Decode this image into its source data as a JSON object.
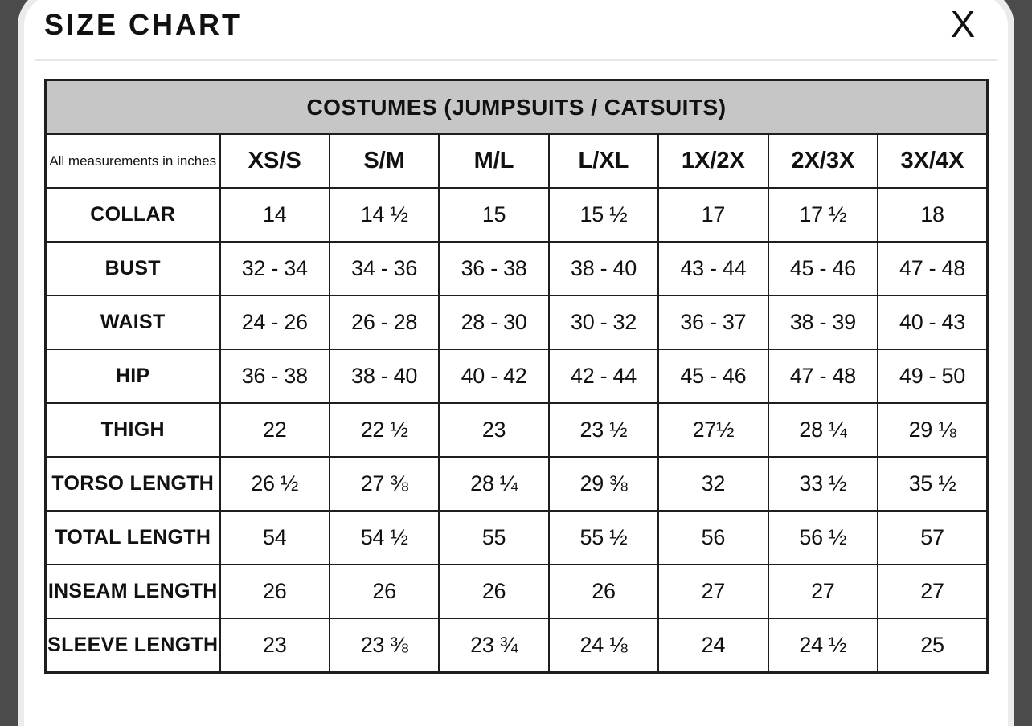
{
  "modal": {
    "title": "SIZE CHART",
    "close_label": "X"
  },
  "table": {
    "caption": "COSTUMES (JUMPSUITS / CATSUITS)",
    "corner_note": "All measurements in inches",
    "size_columns": [
      "XS/S",
      "S/M",
      "M/L",
      "L/XL",
      "1X/2X",
      "2X/3X",
      "3X/4X"
    ],
    "rows": [
      {
        "label": "COLLAR",
        "values": [
          "14",
          "14 ½",
          "15",
          "15 ½",
          "17",
          "17 ½",
          "18"
        ]
      },
      {
        "label": "BUST",
        "values": [
          "32 - 34",
          "34 - 36",
          "36 - 38",
          "38 - 40",
          "43 - 44",
          "45 - 46",
          "47 - 48"
        ]
      },
      {
        "label": "WAIST",
        "values": [
          "24 - 26",
          "26 - 28",
          "28 - 30",
          "30 - 32",
          "36 - 37",
          "38 - 39",
          "40 - 43"
        ]
      },
      {
        "label": "HIP",
        "values": [
          "36 - 38",
          "38 - 40",
          "40 - 42",
          "42 - 44",
          "45 - 46",
          "47 - 48",
          "49 - 50"
        ]
      },
      {
        "label": "THIGH",
        "values": [
          "22",
          "22 ½",
          "23",
          "23 ½",
          "27½",
          "28 ¼",
          "29 ⅛"
        ]
      },
      {
        "label": "TORSO LENGTH",
        "values": [
          "26 ½",
          "27 ⅜",
          "28 ¼",
          "29 ⅜",
          "32",
          "33 ½",
          "35 ½"
        ]
      },
      {
        "label": "TOTAL LENGTH",
        "values": [
          "54",
          "54 ½",
          "55",
          "55 ½",
          "56",
          "56 ½",
          "57"
        ]
      },
      {
        "label": "INSEAM LENGTH",
        "values": [
          "26",
          "26",
          "26",
          "26",
          "27",
          "27",
          "27"
        ]
      },
      {
        "label": "SLEEVE LENGTH",
        "values": [
          "23",
          "23 ⅜",
          "23 ¾",
          "24 ⅛",
          "24",
          "24 ½",
          "25"
        ]
      }
    ]
  },
  "colors": {
    "backdrop": "#4b4b4b",
    "modal_edge": "#ebebeb",
    "table_caption_bg": "#c6c6c6",
    "table_border": "#1e1e1e",
    "text": "#111111"
  }
}
